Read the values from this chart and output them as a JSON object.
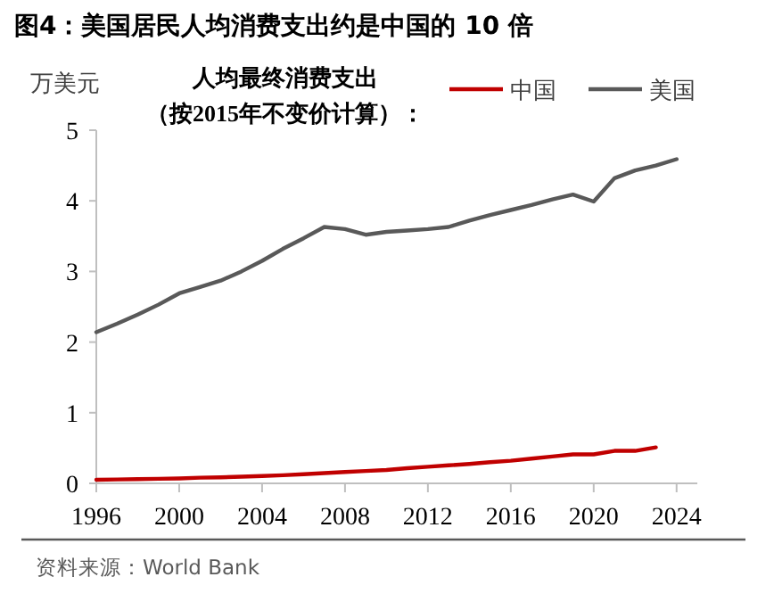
{
  "chart_data": {
    "type": "line",
    "title": "图4：美国居民人均消费支出约是中国的 10 倍",
    "ylabel": "万美元",
    "annotations": [
      "人均最终消费支出",
      "（按2015年不变价计算）：",
      "资料来源：World Bank"
    ],
    "series": [
      {
        "name": "中国",
        "color": "#c00000",
        "x": [
          1996,
          1997,
          1998,
          1999,
          2000,
          2001,
          2002,
          2003,
          2004,
          2005,
          2006,
          2007,
          2008,
          2009,
          2010,
          2011,
          2012,
          2013,
          2014,
          2015,
          2016,
          2017,
          2018,
          2019,
          2020,
          2021,
          2022,
          2023
        ],
        "values": [
          0.05,
          0.055,
          0.06,
          0.065,
          0.07,
          0.08,
          0.085,
          0.095,
          0.105,
          0.115,
          0.13,
          0.145,
          0.16,
          0.175,
          0.19,
          0.215,
          0.235,
          0.255,
          0.275,
          0.3,
          0.32,
          0.35,
          0.38,
          0.41,
          0.41,
          0.46,
          0.46,
          0.51
        ]
      },
      {
        "name": "美国",
        "color": "#595959",
        "x": [
          1996,
          1997,
          1998,
          1999,
          2000,
          2001,
          2002,
          2003,
          2004,
          2005,
          2006,
          2007,
          2008,
          2009,
          2010,
          2011,
          2012,
          2013,
          2014,
          2015,
          2016,
          2017,
          2018,
          2019,
          2020,
          2021,
          2022,
          2023,
          2024
        ],
        "values": [
          2.14,
          2.26,
          2.39,
          2.53,
          2.69,
          2.78,
          2.87,
          3.0,
          3.15,
          3.32,
          3.47,
          3.63,
          3.6,
          3.52,
          3.56,
          3.58,
          3.6,
          3.63,
          3.72,
          3.8,
          3.87,
          3.94,
          4.02,
          4.09,
          3.99,
          4.32,
          4.43,
          4.5,
          4.59
        ]
      }
    ],
    "xlim": [
      1996,
      2025
    ],
    "xticks": [
      1996,
      2000,
      2004,
      2008,
      2012,
      2016,
      2020,
      2024
    ],
    "ylim": [
      0,
      5
    ],
    "yticks": [
      0,
      1,
      2,
      3,
      4,
      5
    ],
    "grid": false,
    "legend": "top right",
    "marker": "none",
    "line_style": "solid"
  }
}
